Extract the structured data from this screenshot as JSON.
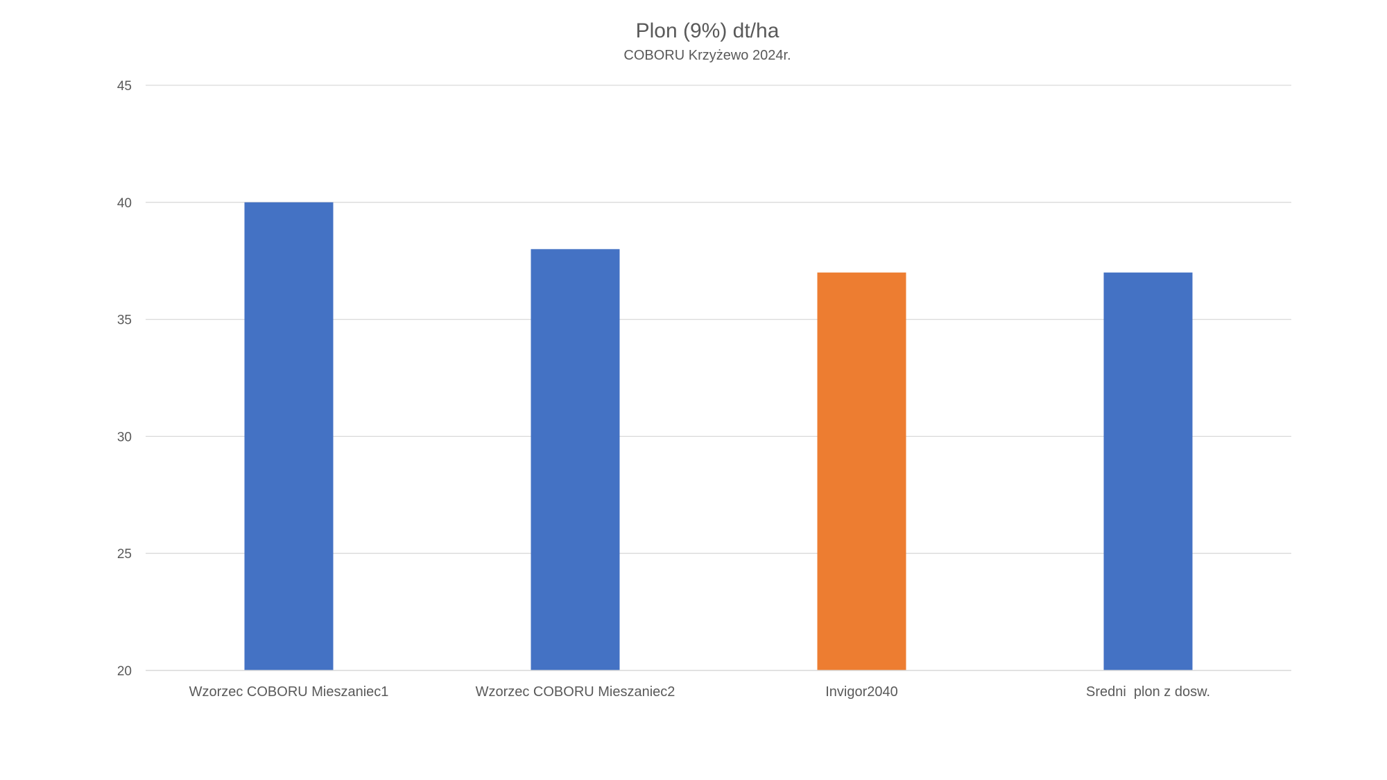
{
  "chart_data": {
    "type": "bar",
    "title": "Plon (9%) dt/ha",
    "subtitle": "COBORU Krzyżewo 2024r.",
    "xlabel": "",
    "ylabel": "",
    "categories": [
      "Wzorzec COBORU Mieszaniec1",
      "Wzorzec COBORU Mieszaniec2",
      "Invigor2040",
      "Sredni  plon z dosw."
    ],
    "values": [
      40,
      38,
      37,
      37
    ],
    "bar_colors": [
      "#4472C4",
      "#4472C4",
      "#ED7D31",
      "#4472C4"
    ],
    "ylim": [
      20,
      45
    ],
    "yticks": [
      20,
      25,
      30,
      35,
      40,
      45
    ],
    "grid": true,
    "legend": "none"
  }
}
